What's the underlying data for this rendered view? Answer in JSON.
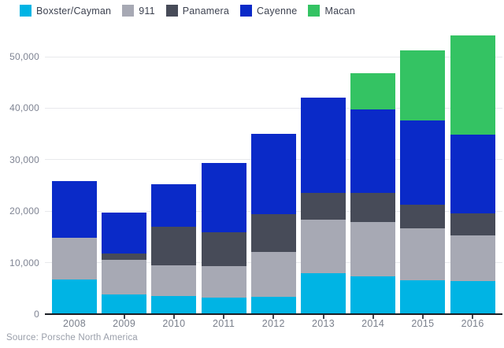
{
  "source_note": "Source: Porsche North America",
  "colors": {
    "boxster_cayman": "#00b4e4",
    "nine_eleven": "#a7a9b4",
    "panamera": "#474b58",
    "cayenne": "#0a2ac8",
    "macan": "#34c363",
    "gridline": "#e8e9ec",
    "axis_line": "#1a1d24",
    "axis_text": "#7f8493",
    "legend_text": "#3d4250",
    "source_text": "#999ea9"
  },
  "chart_data": {
    "type": "bar",
    "stacked": true,
    "title": "",
    "xlabel": "",
    "ylabel": "",
    "grid": true,
    "legend_position": "top",
    "categories": [
      "2008",
      "2009",
      "2010",
      "2011",
      "2012",
      "2013",
      "2014",
      "2015",
      "2016"
    ],
    "series": [
      {
        "name": "Boxster/Cayman",
        "color": "#00b4e4",
        "values": [
          6700,
          3900,
          3500,
          3200,
          3400,
          8000,
          7300,
          6600,
          6400
        ]
      },
      {
        "name": "911",
        "color": "#a7a9b4",
        "values": [
          8100,
          6600,
          6000,
          6100,
          8700,
          10400,
          10600,
          10100,
          8900
        ]
      },
      {
        "name": "Panamera",
        "color": "#474b58",
        "values": [
          0,
          1300,
          7500,
          6600,
          7300,
          5200,
          5700,
          4600,
          4300
        ]
      },
      {
        "name": "Cayenne",
        "color": "#0a2ac8",
        "values": [
          11100,
          8000,
          8300,
          13500,
          15600,
          18500,
          16200,
          16300,
          15300
        ]
      },
      {
        "name": "Macan",
        "color": "#34c363",
        "values": [
          0,
          0,
          0,
          0,
          0,
          0,
          7000,
          13600,
          19200
        ]
      }
    ],
    "totals": [
      25900,
      19800,
      25300,
      29400,
      35000,
      42100,
      46800,
      51200,
      54100
    ],
    "ylim": [
      0,
      50000
    ],
    "yticks": [
      0,
      10000,
      20000,
      30000,
      40000,
      50000
    ],
    "ytick_labels": [
      "0",
      "10,000",
      "20,000",
      "30,000",
      "40,000",
      "50,000"
    ]
  }
}
